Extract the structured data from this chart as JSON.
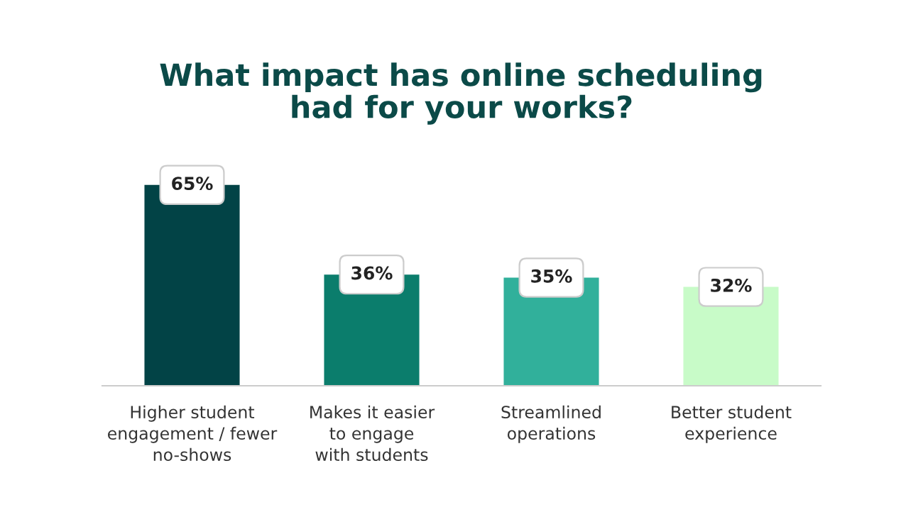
{
  "chart_data": {
    "type": "bar",
    "title": "What impact has online scheduling\nhad for your works?",
    "categories": [
      "Higher student\nengagement / fewer\nno-shows",
      "Makes it easier\nto engage\nwith students",
      "Streamlined\noperations",
      "Better student\nexperience"
    ],
    "values": [
      65,
      36,
      35,
      32
    ],
    "value_labels": [
      "65%",
      "36%",
      "35%",
      "32%"
    ],
    "colors": [
      "#024346",
      "#0b7d6c",
      "#31b09b",
      "#c8fbc8"
    ],
    "grid": false,
    "legend": false
  }
}
